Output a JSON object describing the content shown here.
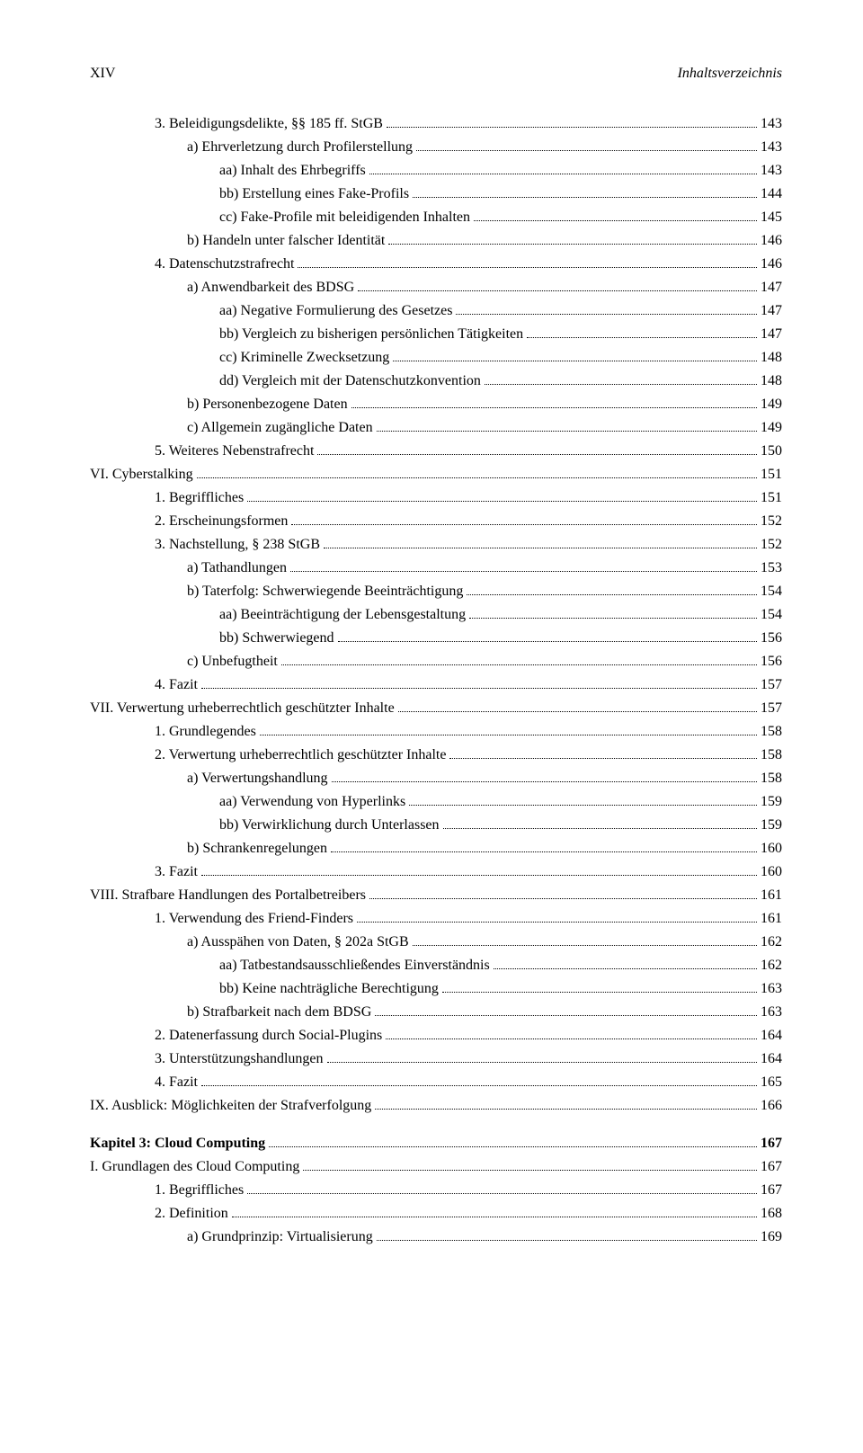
{
  "header": {
    "left": "XIV",
    "right": "Inhaltsverzeichnis"
  },
  "entries": [
    {
      "indent": 2,
      "text": "3.  Beleidigungsdelikte, §§ 185 ff. StGB",
      "page": "143"
    },
    {
      "indent": 3,
      "text": "a)  Ehrverletzung durch Profilerstellung",
      "page": "143"
    },
    {
      "indent": 4,
      "text": "aa) Inhalt des Ehrbegriffs",
      "page": "143"
    },
    {
      "indent": 4,
      "text": "bb) Erstellung eines Fake-Profils",
      "page": "144"
    },
    {
      "indent": 4,
      "text": "cc) Fake-Profile mit beleidigenden Inhalten",
      "page": "145"
    },
    {
      "indent": 3,
      "text": "b)  Handeln unter falscher Identität",
      "page": "146"
    },
    {
      "indent": 2,
      "text": "4.  Datenschutzstrafrecht",
      "page": "146"
    },
    {
      "indent": 3,
      "text": "a)  Anwendbarkeit des BDSG",
      "page": "147"
    },
    {
      "indent": 4,
      "text": "aa) Negative Formulierung des Gesetzes",
      "page": "147"
    },
    {
      "indent": 4,
      "text": "bb) Vergleich zu bisherigen persönlichen Tätigkeiten",
      "page": "147"
    },
    {
      "indent": 4,
      "text": "cc) Kriminelle Zwecksetzung",
      "page": "148"
    },
    {
      "indent": 4,
      "text": "dd) Vergleich mit der Datenschutzkonvention",
      "page": "148"
    },
    {
      "indent": 3,
      "text": "b)  Personenbezogene Daten",
      "page": "149"
    },
    {
      "indent": 3,
      "text": "c)  Allgemein zugängliche Daten",
      "page": "149"
    },
    {
      "indent": 2,
      "text": "5.  Weiteres Nebenstrafrecht",
      "page": "150"
    },
    {
      "indent": 0,
      "text": "VI.  Cyberstalking",
      "page": "151"
    },
    {
      "indent": 2,
      "text": "1.  Begriffliches",
      "page": "151"
    },
    {
      "indent": 2,
      "text": "2.  Erscheinungsformen",
      "page": "152"
    },
    {
      "indent": 2,
      "text": "3.  Nachstellung, § 238 StGB",
      "page": "152"
    },
    {
      "indent": 3,
      "text": "a)  Tathandlungen",
      "page": "153"
    },
    {
      "indent": 3,
      "text": "b)  Taterfolg: Schwerwiegende Beeinträchtigung",
      "page": "154"
    },
    {
      "indent": 4,
      "text": "aa) Beeinträchtigung der Lebensgestaltung",
      "page": "154"
    },
    {
      "indent": 4,
      "text": "bb) Schwerwiegend",
      "page": "156"
    },
    {
      "indent": 3,
      "text": "c)  Unbefugtheit",
      "page": "156"
    },
    {
      "indent": 2,
      "text": "4.  Fazit",
      "page": "157"
    },
    {
      "indent": 0,
      "text": "VII. Verwertung urheberrechtlich geschützter Inhalte",
      "page": "157"
    },
    {
      "indent": 2,
      "text": "1.  Grundlegendes",
      "page": "158"
    },
    {
      "indent": 2,
      "text": "2.  Verwertung urheberrechtlich geschützter Inhalte",
      "page": "158"
    },
    {
      "indent": 3,
      "text": "a)  Verwertungshandlung",
      "page": "158"
    },
    {
      "indent": 4,
      "text": "aa) Verwendung von Hyperlinks",
      "page": "159"
    },
    {
      "indent": 4,
      "text": "bb) Verwirklichung durch Unterlassen",
      "page": "159"
    },
    {
      "indent": 3,
      "text": "b)  Schrankenregelungen",
      "page": "160"
    },
    {
      "indent": 2,
      "text": "3.  Fazit",
      "page": "160"
    },
    {
      "indent": 0,
      "text": "VIII. Strafbare Handlungen des Portalbetreibers",
      "page": "161"
    },
    {
      "indent": 2,
      "text": "1.  Verwendung des Friend-Finders",
      "page": "161"
    },
    {
      "indent": 3,
      "text": "a)  Ausspähen von Daten, § 202a StGB",
      "page": "162"
    },
    {
      "indent": 4,
      "text": "aa) Tatbestandsausschließendes Einverständnis",
      "page": "162"
    },
    {
      "indent": 4,
      "text": "bb) Keine nachträgliche Berechtigung",
      "page": "163"
    },
    {
      "indent": 3,
      "text": "b)  Strafbarkeit nach dem BDSG",
      "page": "163"
    },
    {
      "indent": 2,
      "text": "2.  Datenerfassung durch Social-Plugins",
      "page": "164"
    },
    {
      "indent": 2,
      "text": "3.  Unterstützungshandlungen",
      "page": "164"
    },
    {
      "indent": 2,
      "text": "4.  Fazit",
      "page": "165"
    },
    {
      "indent": 0,
      "text": "IX.  Ausblick: Möglichkeiten der Strafverfolgung",
      "page": "166"
    },
    {
      "indent": 0,
      "text": "Kapitel 3: Cloud Computing",
      "page": "167",
      "chapter": true
    },
    {
      "indent": 0,
      "text": "I.    Grundlagen des Cloud Computing",
      "page": "167",
      "mt": true
    },
    {
      "indent": 2,
      "text": "1.  Begriffliches",
      "page": "167"
    },
    {
      "indent": 2,
      "text": "2.  Definition",
      "page": "168"
    },
    {
      "indent": 3,
      "text": "a)  Grundprinzip: Virtualisierung",
      "page": "169"
    }
  ]
}
